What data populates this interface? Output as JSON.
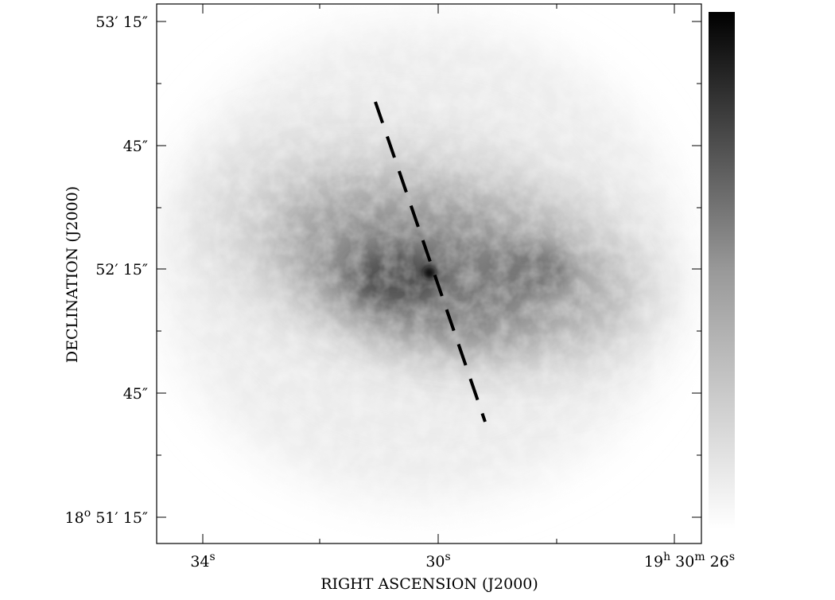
{
  "x_axis": {
    "label": "RIGHT ASCENSION (J2000)",
    "ticks": [
      {
        "parts": [
          "34",
          "s"
        ]
      },
      {
        "parts": [
          "30",
          "s"
        ]
      },
      {
        "parts": [
          "19",
          "h",
          " 30",
          "m",
          " 26",
          "s"
        ]
      }
    ]
  },
  "y_axis": {
    "label": "DECLINATION (J2000)",
    "ticks": [
      {
        "parts": [
          "53′ 15″"
        ]
      },
      {
        "parts": [
          "45″"
        ]
      },
      {
        "parts": [
          "52′ 15″"
        ]
      },
      {
        "parts": [
          "45″"
        ]
      },
      {
        "parts": [
          "18",
          "o",
          " 51′ 15″"
        ]
      }
    ]
  }
}
